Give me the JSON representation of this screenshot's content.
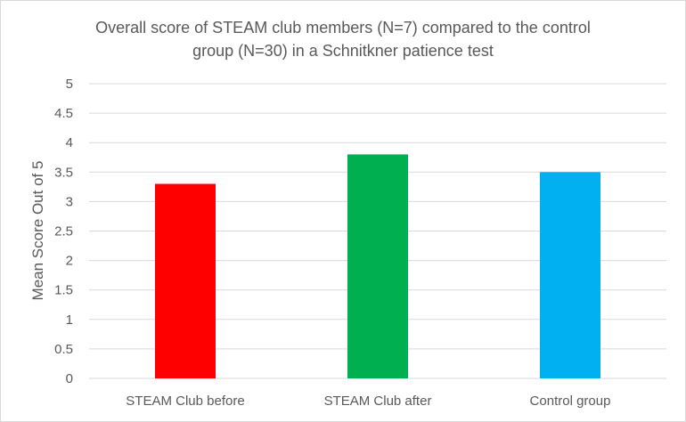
{
  "chart_data": {
    "type": "bar",
    "title_lines": [
      "Overall score of STEAM club members (N=7) compared to the control",
      "group (N=30) in a Schnitkner patience test"
    ],
    "categories": [
      "STEAM Club before",
      "STEAM Club after",
      "Control group"
    ],
    "values": [
      3.3,
      3.8,
      3.5
    ],
    "colors": [
      "#ff0000",
      "#00b050",
      "#00b0f0"
    ],
    "ylabel": "Mean Score Out of 5",
    "xlabel": "",
    "ylim": [
      0,
      5
    ],
    "yticks": [
      "0",
      "0.5",
      "1",
      "1.5",
      "2",
      "2.5",
      "3",
      "3.5",
      "4",
      "4.5",
      "5"
    ],
    "grid": true
  }
}
